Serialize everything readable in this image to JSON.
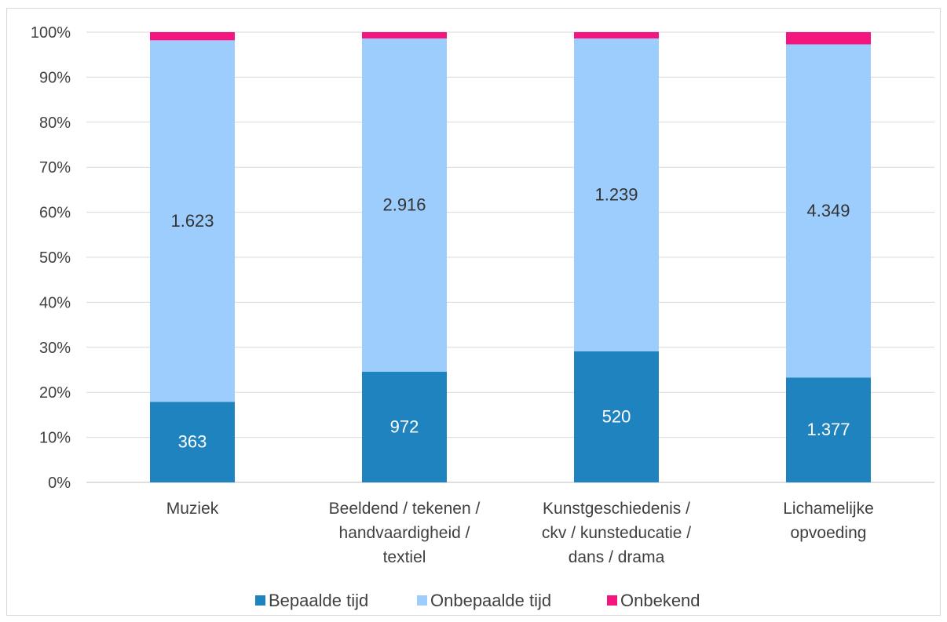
{
  "chart_data": {
    "type": "bar",
    "stacked": true,
    "normalized": true,
    "categories": [
      [
        "Muziek"
      ],
      [
        "Beeldend / tekenen /",
        "handvaardigheid /",
        "textiel"
      ],
      [
        "Kunstgeschiedenis /",
        "ckv / kunsteducatie /",
        "dans / drama"
      ],
      [
        "Lichamelijke",
        "opvoeding"
      ]
    ],
    "series": [
      {
        "name": "Bepaalde tijd",
        "color": "#1f83bf",
        "percent": [
          17.9,
          24.6,
          29.1,
          23.3
        ],
        "labels": [
          "363",
          "972",
          "520",
          "1.377"
        ],
        "label_color": "#ffffff"
      },
      {
        "name": "Onbepaalde tijd",
        "color": "#9dcdfc",
        "percent": [
          80.3,
          74.0,
          69.5,
          74.0
        ],
        "labels": [
          "1.623",
          "2.916",
          "1.239",
          "4.349"
        ],
        "label_color": "#333333"
      },
      {
        "name": "Onbekend",
        "color": "#f5157f",
        "percent": [
          1.8,
          1.4,
          1.4,
          2.7
        ],
        "labels": [
          "",
          "",
          "",
          ""
        ],
        "label_color": "#333333"
      }
    ],
    "y_ticks": [
      "0%",
      "10%",
      "20%",
      "30%",
      "40%",
      "50%",
      "60%",
      "70%",
      "80%",
      "90%",
      "100%"
    ],
    "ylim": [
      0,
      100
    ],
    "grid": true,
    "legend_position": "bottom"
  }
}
